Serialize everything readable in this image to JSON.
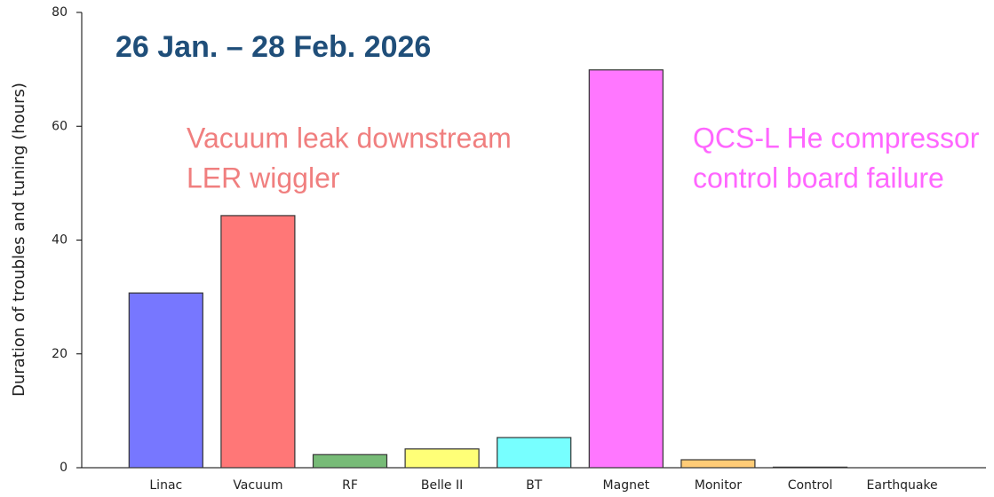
{
  "chart_data": {
    "type": "bar",
    "title": "26 Jan. – 28 Feb. 2026",
    "y_label": "Duration of troubles and tuning (hours)",
    "categories": [
      "Linac",
      "Vacuum",
      "RF",
      "Belle II",
      "BT",
      "Magnet",
      "Monitor",
      "Control",
      "Earthquake"
    ],
    "values": [
      30.7,
      44.3,
      2.3,
      3.3,
      5.3,
      69.9,
      1.4,
      0.1,
      0
    ],
    "colors": [
      "#7777ff",
      "#ff7777",
      "#77bb77",
      "#ffff77",
      "#77ffff",
      "#ff77ff",
      "#ffcc77",
      "#999999",
      "#999999"
    ],
    "ylim": [
      0,
      80
    ],
    "yticks": [
      0,
      20,
      40,
      60,
      80
    ],
    "annotations": [
      {
        "lines": [
          "Vacuum leak downstream",
          "LER wiggler"
        ],
        "color": "#f07f7f"
      },
      {
        "lines": [
          "QCS-L He compressor",
          "control board failure"
        ],
        "color": "#ff66ff"
      }
    ]
  }
}
